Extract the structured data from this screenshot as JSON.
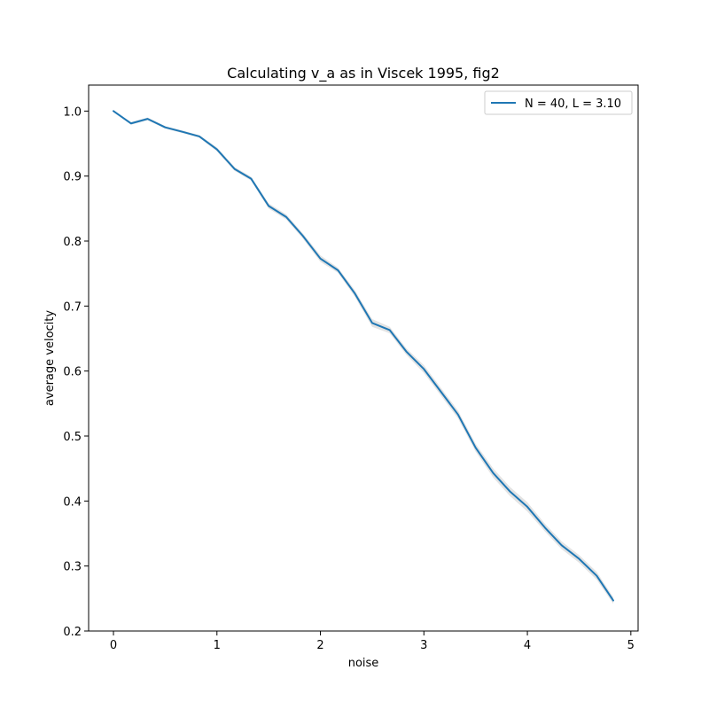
{
  "chart_data": {
    "type": "line",
    "title": "Calculating v_a as in Viscek 1995, fig2",
    "xlabel": "noise",
    "ylabel": "average velocity",
    "xlim": [
      -0.24,
      5.07
    ],
    "ylim": [
      0.2,
      1.04
    ],
    "xticks": [
      0,
      1,
      2,
      3,
      4,
      5
    ],
    "xtick_labels": [
      "0",
      "1",
      "2",
      "3",
      "4",
      "5"
    ],
    "yticks": [
      0.2,
      0.3,
      0.4,
      0.5,
      0.6,
      0.7,
      0.8,
      0.9,
      1.0
    ],
    "ytick_labels": [
      "0.2",
      "0.3",
      "0.4",
      "0.5",
      "0.6",
      "0.7",
      "0.8",
      "0.9",
      "1.0"
    ],
    "grid": false,
    "legend_position": "top-right",
    "series": [
      {
        "name": "N = 40, L = 3.10",
        "color": "#1f77b4",
        "band_color": "#b0b0b0",
        "x": [
          0,
          0.17,
          0.33,
          0.5,
          0.67,
          0.83,
          1.0,
          1.17,
          1.33,
          1.5,
          1.67,
          1.83,
          2.0,
          2.17,
          2.33,
          2.5,
          2.67,
          2.83,
          3.0,
          3.17,
          3.33,
          3.5,
          3.67,
          3.83,
          4.0,
          4.17,
          4.33,
          4.5,
          4.67,
          4.83
        ],
        "y": [
          1.0,
          0.981,
          0.988,
          0.975,
          0.968,
          0.961,
          0.941,
          0.911,
          0.896,
          0.854,
          0.837,
          0.808,
          0.773,
          0.755,
          0.72,
          0.674,
          0.663,
          0.63,
          0.603,
          0.567,
          0.533,
          0.482,
          0.443,
          0.415,
          0.391,
          0.359,
          0.332,
          0.311,
          0.285,
          0.247
        ],
        "ci": [
          0.0,
          0.002,
          0.002,
          0.002,
          0.002,
          0.002,
          0.003,
          0.003,
          0.003,
          0.004,
          0.004,
          0.004,
          0.005,
          0.004,
          0.005,
          0.006,
          0.005,
          0.005,
          0.006,
          0.006,
          0.006,
          0.006,
          0.007,
          0.007,
          0.007,
          0.006,
          0.006,
          0.006,
          0.006,
          0.005
        ]
      }
    ]
  }
}
